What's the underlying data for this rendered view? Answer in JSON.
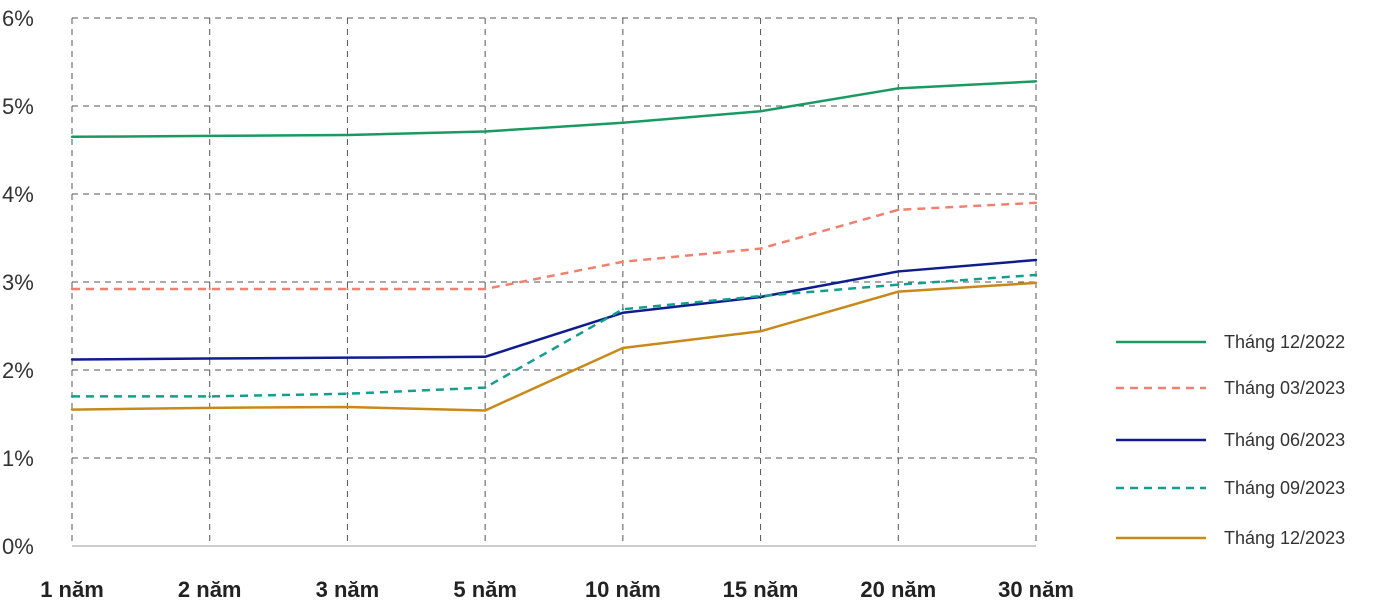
{
  "chart_data": {
    "type": "line",
    "categories": [
      "1 năm",
      "2 năm",
      "3 năm",
      "5 năm",
      "10 năm",
      "15 năm",
      "20 năm",
      "30 năm"
    ],
    "ylim": [
      0,
      6
    ],
    "yticks": [
      0,
      1,
      2,
      3,
      4,
      5,
      6
    ],
    "ytick_labels": [
      "0%",
      "1%",
      "2%",
      "3%",
      "4%",
      "5%",
      "6%"
    ],
    "grid": true,
    "legend_position": "right",
    "series": [
      {
        "name": "Tháng 12/2022",
        "color": "#1a9a62",
        "dash": "solid",
        "values": [
          4.65,
          4.66,
          4.67,
          4.71,
          4.81,
          4.94,
          5.2,
          5.28
        ]
      },
      {
        "name": "Tháng 03/2023",
        "color": "#f08070",
        "dash": "dashed",
        "values": [
          2.92,
          2.92,
          2.92,
          2.92,
          3.23,
          3.38,
          3.82,
          3.9
        ]
      },
      {
        "name": "Tháng 06/2023",
        "color": "#0f1d8c",
        "dash": "solid",
        "values": [
          2.12,
          2.13,
          2.14,
          2.15,
          2.65,
          2.83,
          3.12,
          3.25
        ]
      },
      {
        "name": "Tháng 09/2023",
        "color": "#139e8e",
        "dash": "dashed",
        "values": [
          1.7,
          1.7,
          1.73,
          1.8,
          2.69,
          2.84,
          2.97,
          3.08
        ]
      },
      {
        "name": "Tháng 12/2023",
        "color": "#c8891a",
        "dash": "solid",
        "values": [
          1.55,
          1.57,
          1.58,
          1.54,
          2.25,
          2.44,
          2.89,
          2.99
        ]
      }
    ]
  }
}
